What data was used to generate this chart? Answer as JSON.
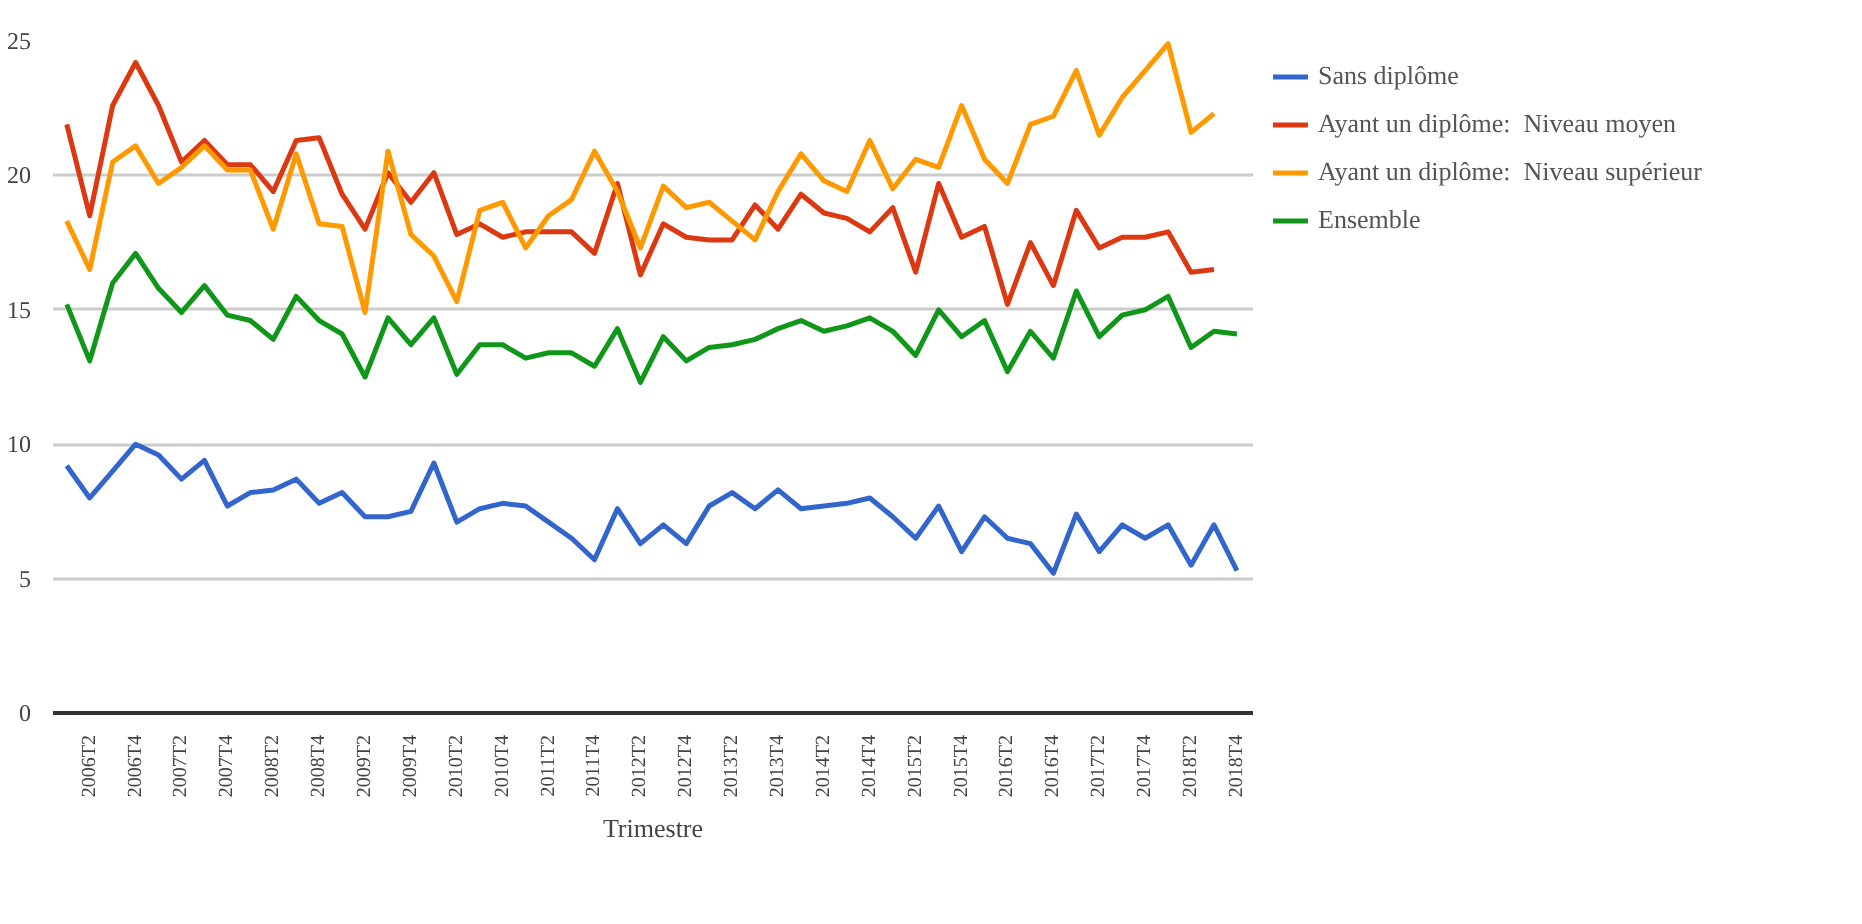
{
  "chart_data": {
    "type": "line",
    "xlabel": "Trimestre",
    "categories": [
      null,
      "2006T2",
      null,
      "2006T4",
      null,
      "2007T2",
      null,
      "2007T4",
      null,
      "2008T2",
      null,
      "2008T4",
      null,
      "2009T2",
      null,
      "2009T4",
      null,
      "2010T2",
      null,
      "2010T4",
      null,
      "2011T2",
      null,
      "2011T4",
      null,
      "2012T2",
      null,
      "2012T4",
      null,
      "2013T2",
      null,
      "2013T4",
      null,
      "2014T2",
      null,
      "2014T4",
      null,
      "2015T2",
      null,
      "2015T4",
      null,
      "2016T2",
      null,
      "2016T4",
      null,
      "2017T2",
      null,
      "2017T4",
      null,
      "2018T2",
      null,
      "2018T4"
    ],
    "series": [
      {
        "name": "Sans diplôme",
        "color": "#3366cc",
        "values": [
          9.2,
          8.0,
          9.0,
          10.0,
          9.6,
          8.7,
          9.4,
          7.7,
          8.2,
          8.3,
          8.7,
          7.8,
          8.2,
          7.3,
          7.3,
          7.5,
          9.3,
          7.1,
          7.6,
          7.8,
          7.7,
          7.1,
          6.5,
          5.7,
          7.6,
          6.3,
          7.0,
          6.3,
          7.7,
          8.2,
          7.6,
          8.3,
          7.6,
          7.7,
          7.8,
          8.0,
          7.3,
          6.5,
          7.7,
          6.0,
          7.3,
          6.5,
          6.3,
          5.2,
          7.4,
          6.0,
          7.0,
          6.5,
          7.0,
          5.5,
          7.0,
          5.3
        ]
      },
      {
        "name": "Ayant un diplôme:  Niveau moyen",
        "color": "#dc3912",
        "values": [
          21.9,
          18.5,
          22.6,
          24.2,
          22.6,
          20.5,
          21.3,
          20.4,
          20.4,
          19.4,
          21.3,
          21.4,
          19.3,
          18.0,
          20.1,
          19.0,
          20.1,
          17.8,
          18.2,
          17.7,
          17.9,
          17.9,
          17.9,
          17.1,
          19.7,
          16.3,
          18.2,
          17.7,
          17.6,
          17.6,
          18.9,
          18.0,
          19.3,
          18.6,
          18.4,
          17.9,
          18.8,
          16.4,
          19.7,
          17.7,
          18.1,
          15.2,
          17.5,
          15.9,
          18.7,
          17.3,
          17.7,
          17.7,
          17.9,
          16.4,
          16.5,
          null
        ]
      },
      {
        "name": "Ayant un diplôme:  Niveau supérieur",
        "color": "#ff9900",
        "values": [
          18.3,
          16.5,
          20.5,
          21.1,
          19.7,
          20.3,
          21.1,
          20.2,
          20.2,
          18.0,
          20.8,
          18.2,
          18.1,
          14.9,
          20.9,
          17.8,
          17.0,
          15.3,
          18.7,
          19.0,
          17.3,
          18.5,
          19.1,
          20.9,
          19.4,
          17.3,
          19.6,
          18.8,
          19.0,
          18.3,
          17.6,
          19.4,
          20.8,
          19.8,
          19.4,
          21.3,
          19.5,
          20.6,
          20.3,
          22.6,
          20.6,
          19.7,
          21.9,
          22.2,
          23.9,
          21.5,
          22.9,
          23.9,
          24.9,
          21.6,
          22.3,
          null
        ]
      },
      {
        "name": "Ensemble",
        "color": "#109618",
        "values": [
          15.2,
          13.1,
          16.0,
          17.1,
          15.8,
          14.9,
          15.9,
          14.8,
          14.6,
          13.9,
          15.5,
          14.6,
          14.1,
          12.5,
          14.7,
          13.7,
          14.7,
          12.6,
          13.7,
          13.7,
          13.2,
          13.4,
          13.4,
          12.9,
          14.3,
          12.3,
          14.0,
          13.1,
          13.6,
          13.7,
          13.9,
          14.3,
          14.6,
          14.2,
          14.4,
          14.7,
          14.2,
          13.3,
          15.0,
          14.0,
          14.6,
          12.7,
          14.2,
          13.2,
          15.7,
          14.0,
          14.8,
          15.0,
          15.5,
          13.6,
          14.2,
          14.1
        ]
      }
    ],
    "ylim": [
      0,
      25
    ],
    "yticks": [
      0,
      5,
      10,
      15,
      20,
      25
    ],
    "grid": "y",
    "legend": "right",
    "marker": "none",
    "line_style": "solid"
  }
}
